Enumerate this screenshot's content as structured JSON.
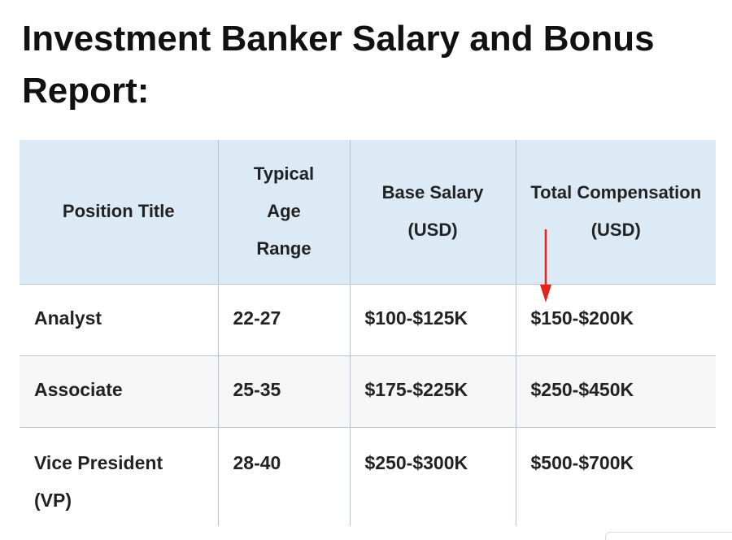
{
  "page": {
    "title": "Investment Banker Salary and Bonus Report:"
  },
  "table": {
    "headers": [
      "Position Title",
      "Typical Age Range",
      "Base Salary (USD)",
      "Total Compensation (USD)"
    ],
    "rows": [
      [
        "Analyst",
        "22-27",
        "$100-$125K",
        "$150-$200K"
      ],
      [
        "Associate",
        "25-35",
        "$175-$225K",
        "$250-$450K"
      ],
      [
        "Vice President (VP)",
        "28-40",
        "$250-$300K",
        "$500-$700K"
      ]
    ]
  },
  "annotation": {
    "arrow_color": "#e8211a",
    "arrow_icon": "down-arrow-icon"
  },
  "colors": {
    "header_background": "#dbeaf5",
    "striped_row_background": "#f6f6f6",
    "grid_line": "#b7c4cf"
  }
}
